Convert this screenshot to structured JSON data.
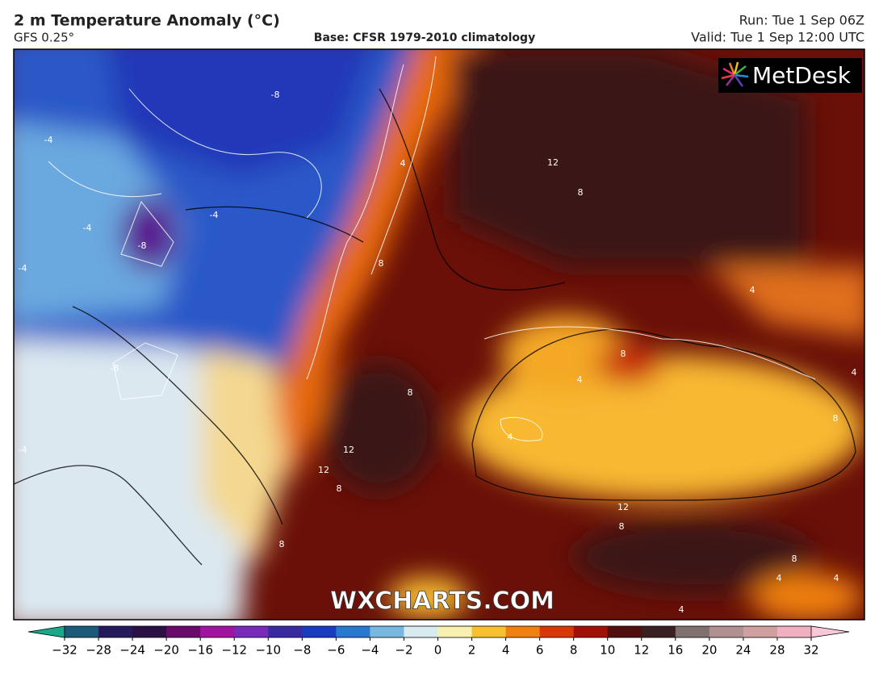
{
  "header": {
    "title": "2 m Temperature Anomaly (°C)",
    "model": "GFS 0.25°",
    "base": "Base: CFSR 1979-2010 climatology",
    "run": "Run: Tue 1 Sep 06Z",
    "valid": "Valid: Tue 1 Sep 12:00 UTC"
  },
  "logo": "MetDesk",
  "watermark": "WXCHARTS.COM",
  "contour_labels": [
    "-8",
    "-4",
    "-4",
    "-8",
    "-4",
    "-4",
    "-8",
    "-4",
    "4",
    "12",
    "8",
    "8",
    "8",
    "12",
    "12",
    "8",
    "4",
    "8",
    "4",
    "4",
    "12",
    "8",
    "8",
    "8",
    "4",
    "8",
    "4",
    "4",
    "4"
  ],
  "colorbar": {
    "ticks": [
      {
        "value": -32,
        "label": "−32"
      },
      {
        "value": -28,
        "label": "−28"
      },
      {
        "value": -24,
        "label": "−24"
      },
      {
        "value": -20,
        "label": "−20"
      },
      {
        "value": -16,
        "label": "−16"
      },
      {
        "value": -12,
        "label": "−12"
      },
      {
        "value": -10,
        "label": "−10"
      },
      {
        "value": -8,
        "label": "−8"
      },
      {
        "value": -6,
        "label": "−6"
      },
      {
        "value": -4,
        "label": "−4"
      },
      {
        "value": -2,
        "label": "−2"
      },
      0,
      2,
      4,
      6,
      8,
      10,
      12,
      16,
      20,
      24,
      28,
      32
    ],
    "under_color": "#19a88a",
    "over_color": "#f8c8d8",
    "colors": [
      "#1c5a7a",
      "#241a5c",
      "#2a1045",
      "#6a0a6a",
      "#a014a0",
      "#7a2ab8",
      "#3a2aa0",
      "#1a3ac0",
      "#2878d0",
      "#78b8e0",
      "#d8ecf0",
      "#f8f0b0",
      "#f8c030",
      "#f08010",
      "#d83808",
      "#a01008",
      "#501010",
      "#3a2020",
      "#807070",
      "#b09090",
      "#d0a0a0",
      "#f0b0c0"
    ]
  }
}
